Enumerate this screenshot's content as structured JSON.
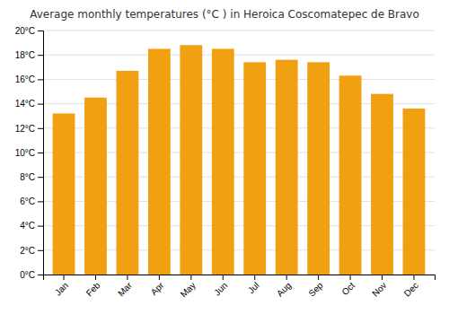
{
  "chart_data": {
    "type": "bar",
    "title": "Average monthly temperatures (°C ) in Heroica Coscomatepec de Bravo",
    "categories": [
      "Jan",
      "Feb",
      "Mar",
      "Apr",
      "May",
      "Jun",
      "Jul",
      "Aug",
      "Sep",
      "Oct",
      "Nov",
      "Dec"
    ],
    "values": [
      13.2,
      14.5,
      16.7,
      18.5,
      18.8,
      18.5,
      17.4,
      17.6,
      17.4,
      16.3,
      14.8,
      13.6
    ],
    "color": "#F0A010",
    "ylim": [
      0,
      20
    ],
    "yticks": [
      {
        "value": 0,
        "label": "0°C"
      },
      {
        "value": 2,
        "label": "2°C"
      },
      {
        "value": 4,
        "label": "4°C"
      },
      {
        "value": 6,
        "label": "6°C"
      },
      {
        "value": 8,
        "label": "8°C"
      },
      {
        "value": 10,
        "label": "10°C"
      },
      {
        "value": 12,
        "label": "12°C"
      },
      {
        "value": 14,
        "label": "14°C"
      },
      {
        "value": 16,
        "label": "16°C"
      },
      {
        "value": 18,
        "label": "18°C"
      },
      {
        "value": 20,
        "label": "20°C"
      }
    ],
    "grid": true
  }
}
